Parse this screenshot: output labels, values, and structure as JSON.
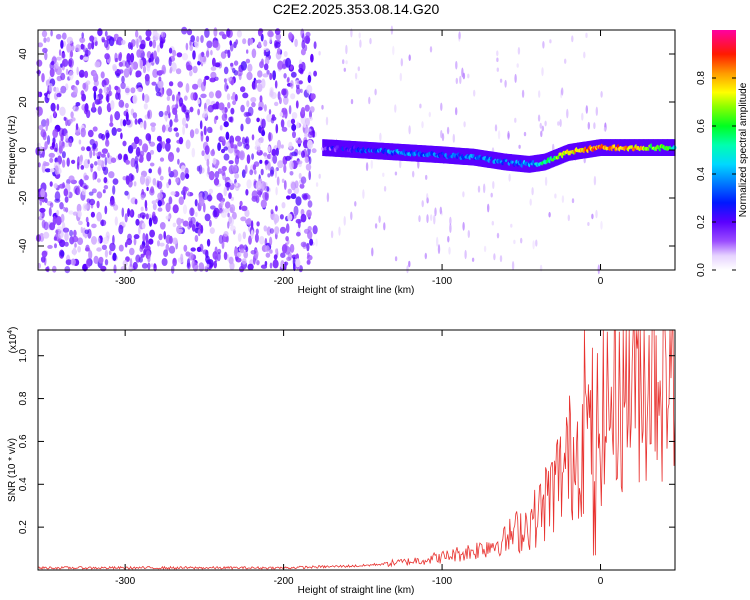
{
  "title": "C2E2.2025.353.08.14.G20",
  "colors": {
    "signal_line": "#e8322f",
    "scatter": "#7a2be0",
    "axis": "#000000"
  },
  "chart_data": [
    {
      "type": "heatmap",
      "name": "spectrogram",
      "xlabel": "Height of straight line (km)",
      "ylabel": "Frequency (Hz)",
      "xlim": [
        -355,
        47
      ],
      "ylim": [
        -50,
        50
      ],
      "xticks": [
        -300,
        -200,
        -100,
        0
      ],
      "yticks": [
        -40,
        -20,
        0,
        20,
        40
      ],
      "colorbar": {
        "label": "Normalized spectral amplitude",
        "range": [
          0,
          1
        ],
        "ticks": [
          0.0,
          0.2,
          0.4,
          0.6,
          0.8
        ]
      },
      "track": {
        "height_km": [
          -175,
          -150,
          -125,
          -100,
          -80,
          -60,
          -45,
          -35,
          -20,
          0,
          20,
          45
        ],
        "frequency_hz": [
          1,
          0,
          -1,
          -2,
          -3,
          -5,
          -6,
          -5,
          -1,
          1,
          1,
          1
        ],
        "amplitude": [
          0.15,
          0.3,
          0.35,
          0.3,
          0.35,
          0.3,
          0.35,
          0.5,
          0.75,
          0.85,
          0.8,
          0.55
        ]
      },
      "noise_region_km": [
        -355,
        -180
      ]
    },
    {
      "type": "line",
      "name": "snr",
      "xlabel": "Height of straight line (km)",
      "ylabel": "SNR (10 * v/v)",
      "yscale_label": "(x10",
      "yscale_exponent": "4",
      "yscale_suffix": ")",
      "xlim": [
        -355,
        47
      ],
      "ylim": [
        0,
        1.12
      ],
      "xticks": [
        -300,
        -200,
        -100,
        0
      ],
      "yticks": [
        0.2,
        0.4,
        0.6,
        0.8,
        1.0
      ],
      "envelope": {
        "height_km": [
          -355,
          -200,
          -150,
          -120,
          -100,
          -80,
          -60,
          -40,
          -30,
          -20,
          -10,
          0,
          20,
          47
        ],
        "snr": [
          0.01,
          0.01,
          0.02,
          0.04,
          0.06,
          0.09,
          0.14,
          0.25,
          0.38,
          0.52,
          0.62,
          0.72,
          0.93,
          1.03
        ]
      },
      "peak": {
        "height_km": -10,
        "snr": 1.12
      }
    }
  ]
}
